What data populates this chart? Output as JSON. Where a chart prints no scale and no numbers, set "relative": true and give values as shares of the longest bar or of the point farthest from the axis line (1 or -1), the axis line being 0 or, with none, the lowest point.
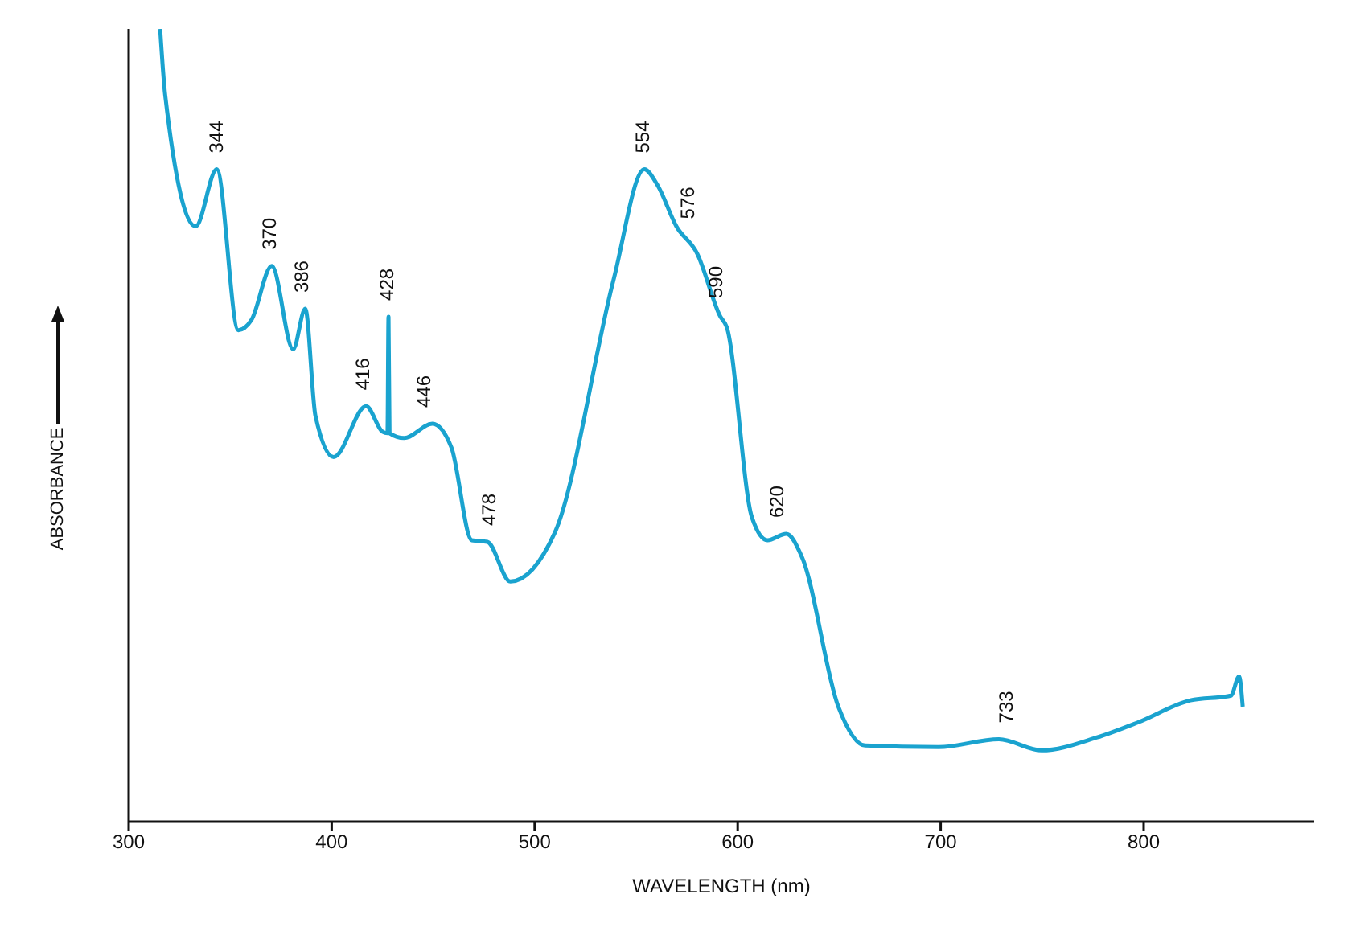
{
  "chart_data": {
    "type": "line",
    "relative": true,
    "xlabel": "WAVELENGTH (nm)",
    "ylabel": "ABSORBANCE",
    "xlim": [
      300,
      884
    ],
    "xticks": [
      300,
      400,
      500,
      600,
      700,
      800
    ],
    "grid": false,
    "legend": false,
    "marker": "none",
    "line_style": "solid",
    "series": [
      {
        "color": "#1aa3cf",
        "x": [
          315.5,
          318,
          333,
          343.4,
          354,
          360.5,
          370.5,
          381,
          387,
          392,
          401,
          417,
          425,
          427.5,
          428,
          428.5,
          435.7,
          449.6,
          459,
          469,
          476.7,
          488,
          510,
          538.8,
          554,
          560.5,
          569.8,
          580,
          591.5,
          594.6,
          607,
          614.7,
          624,
          631.8,
          649.6,
          662.8,
          699,
          728.7,
          749.6,
          776.7,
          797,
          823,
          843,
          847,
          848.8
        ],
        "values": [
          1.0,
          0.916,
          0.751,
          0.823,
          0.62,
          0.633,
          0.701,
          0.596,
          0.647,
          0.512,
          0.46,
          0.524,
          0.492,
          0.49,
          0.637,
          0.49,
          0.484,
          0.502,
          0.472,
          0.355,
          0.353,
          0.303,
          0.365,
          0.683,
          0.823,
          0.803,
          0.751,
          0.717,
          0.637,
          0.624,
          0.384,
          0.355,
          0.363,
          0.333,
          0.145,
          0.096,
          0.094,
          0.104,
          0.09,
          0.106,
          0.125,
          0.153,
          0.159,
          0.183,
          0.145
        ]
      }
    ],
    "annotations": [
      {
        "text": "344",
        "x": 344,
        "y": 0.823
      },
      {
        "text": "370",
        "x": 370,
        "y": 0.701
      },
      {
        "text": "386",
        "x": 386,
        "y": 0.647
      },
      {
        "text": "416",
        "x": 416,
        "y": 0.524
      },
      {
        "text": "428",
        "x": 428,
        "y": 0.637
      },
      {
        "text": "446",
        "x": 446,
        "y": 0.502
      },
      {
        "text": "478",
        "x": 478,
        "y": 0.353
      },
      {
        "text": "554",
        "x": 554,
        "y": 0.823
      },
      {
        "text": "576",
        "x": 576,
        "y": 0.74
      },
      {
        "text": "590",
        "x": 590,
        "y": 0.64
      },
      {
        "text": "620",
        "x": 620,
        "y": 0.363
      },
      {
        "text": "733",
        "x": 733,
        "y": 0.104
      }
    ]
  }
}
